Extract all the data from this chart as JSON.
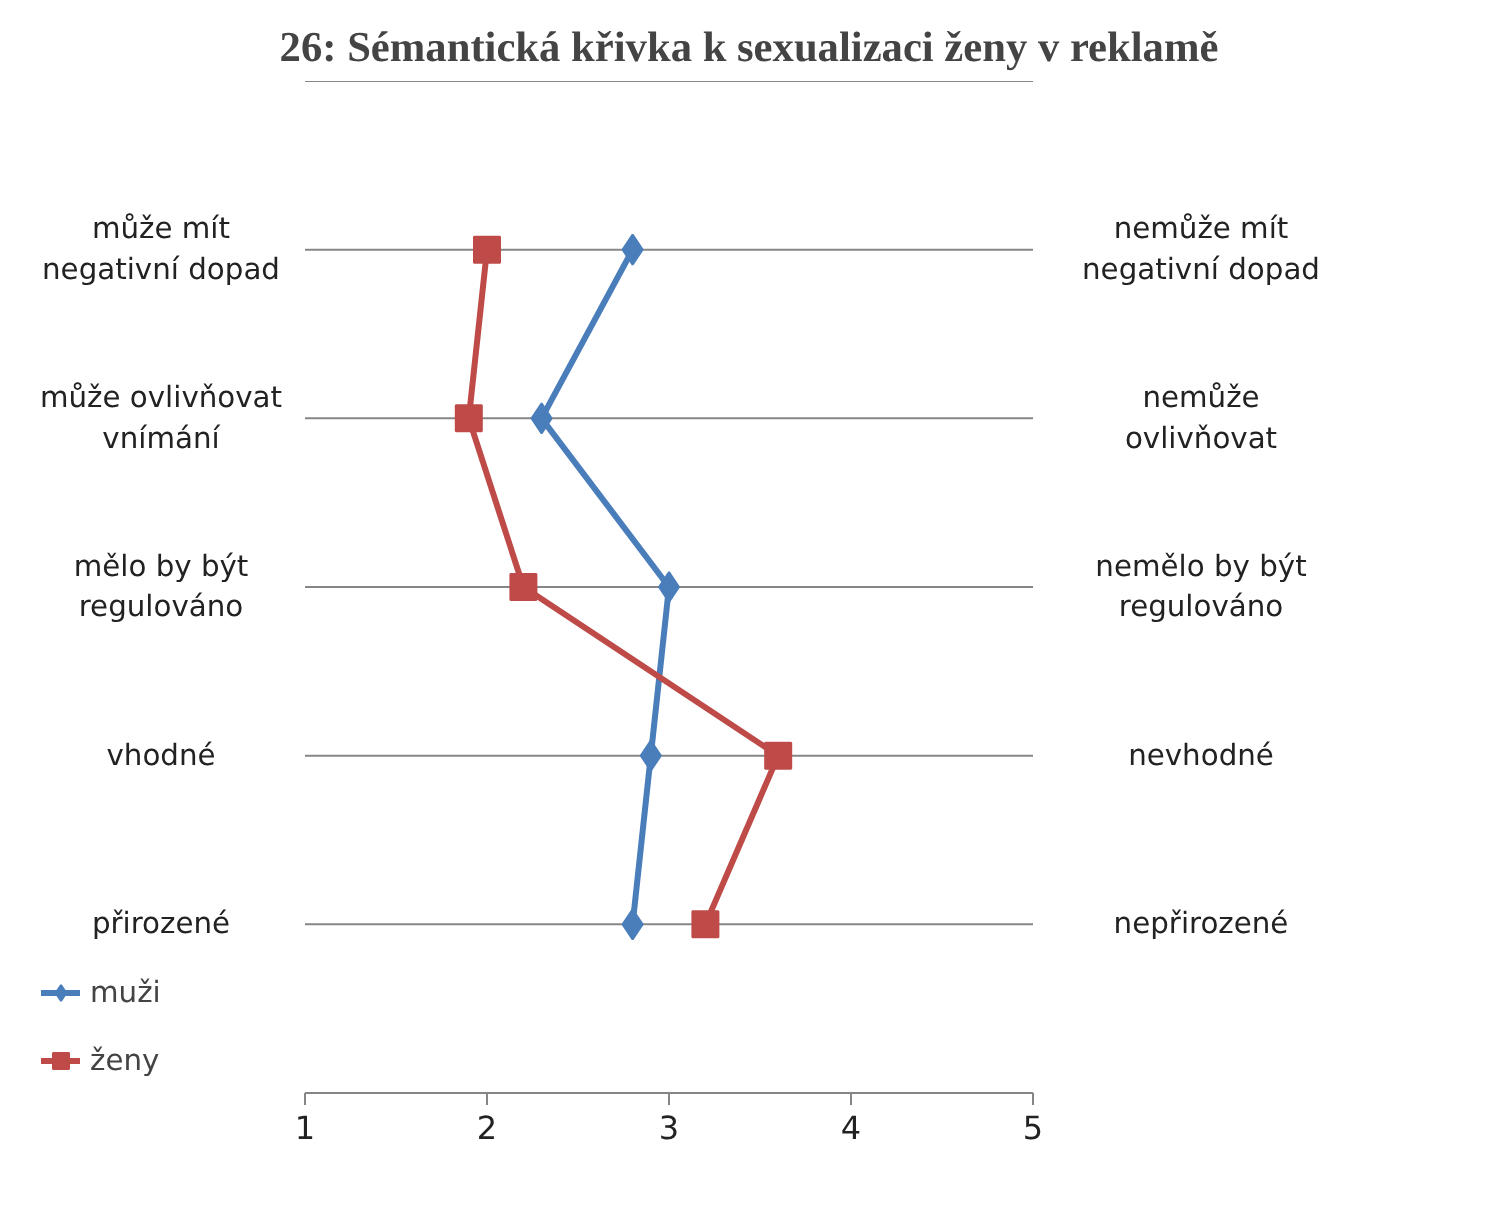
{
  "chart_data": {
    "type": "line",
    "orientation": "horizontal",
    "title": "26: Sémantická křivka k sexualizaci ženy v reklamě",
    "categories": [
      "může mít\nnegativní dopad",
      "může ovlivňovat\nvnímání",
      "mělo by být\nregulováno",
      "vhodné",
      "přirozené"
    ],
    "y2_categories": [
      "nemůže mít\nnegativní dopad",
      "nemůže\novlivňovat",
      "nemělo by být\nregulováno",
      "nevhodné",
      "nepřirozené"
    ],
    "series": [
      {
        "name": "muži",
        "color": "#4a7ebb",
        "marker": "diamond",
        "values": [
          2.8,
          2.3,
          3.0,
          2.9,
          2.8
        ]
      },
      {
        "name": "ženy",
        "color": "#be4b48",
        "marker": "square",
        "values": [
          2.0,
          1.9,
          2.2,
          3.6,
          3.2
        ]
      }
    ],
    "xlim": [
      1,
      5
    ],
    "xticks": [
      1,
      2,
      3,
      4,
      5
    ],
    "grid": "y",
    "legend": "bottom left"
  }
}
